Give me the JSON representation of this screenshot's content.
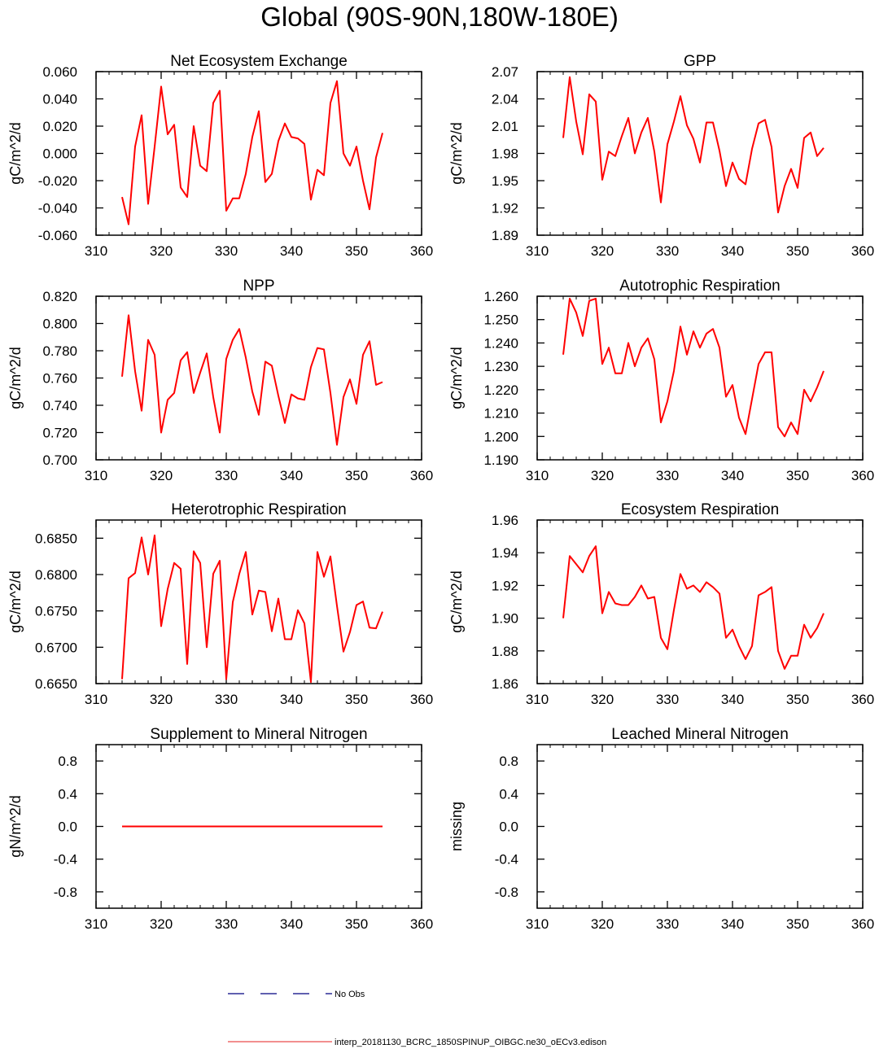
{
  "title": "Global (90S-90N,180W-180E)",
  "legend": {
    "obs_label": "No Obs",
    "model_label": "interp_20181130_BCRC_1850SPINUP_OIBGC.ne30_oECv3.edison",
    "obs_color": "#000080",
    "model_color": "#ee6a6a"
  },
  "line_color": "#ff0000",
  "chart_data": [
    {
      "type": "line",
      "title": "Net Ecosystem Exchange",
      "ylabel": "gC/m^2/d",
      "xlim": [
        310,
        360
      ],
      "xticks": [
        "310",
        "320",
        "330",
        "340",
        "350",
        "360"
      ],
      "ylim": [
        -0.06,
        0.06
      ],
      "yticks": [
        "-0.060",
        "-0.040",
        "-0.020",
        "0.000",
        "0.020",
        "0.040",
        "0.060"
      ],
      "x": [
        314,
        315,
        316,
        317,
        318,
        319,
        320,
        321,
        322,
        323,
        324,
        325,
        326,
        327,
        328,
        329,
        330,
        331,
        332,
        333,
        334,
        335,
        336,
        337,
        338,
        339,
        340,
        341,
        342,
        343,
        344,
        345,
        346,
        347,
        348,
        349,
        350,
        351,
        352,
        353,
        354
      ],
      "values": [
        -0.032,
        -0.052,
        0.005,
        0.028,
        -0.037,
        0.005,
        0.049,
        0.014,
        0.021,
        -0.025,
        -0.032,
        0.02,
        -0.009,
        -0.013,
        0.037,
        0.046,
        -0.042,
        -0.033,
        -0.033,
        -0.015,
        0.012,
        0.031,
        -0.021,
        -0.015,
        0.009,
        0.022,
        0.012,
        0.011,
        0.007,
        -0.034,
        -0.012,
        -0.016,
        0.037,
        0.053,
        0.0,
        -0.009,
        0.005,
        -0.02,
        -0.041,
        -0.003,
        0.015
      ]
    },
    {
      "type": "line",
      "title": "GPP",
      "ylabel": "gC/m^2/d",
      "xlim": [
        310,
        360
      ],
      "xticks": [
        "310",
        "320",
        "330",
        "340",
        "350",
        "360"
      ],
      "ylim": [
        1.89,
        2.07
      ],
      "yticks": [
        "1.89",
        "1.92",
        "1.95",
        "1.98",
        "2.01",
        "2.04",
        "2.07"
      ],
      "x": [
        314,
        315,
        316,
        317,
        318,
        319,
        320,
        321,
        322,
        323,
        324,
        325,
        326,
        327,
        328,
        329,
        330,
        331,
        332,
        333,
        334,
        335,
        336,
        337,
        338,
        339,
        340,
        341,
        342,
        343,
        344,
        345,
        346,
        347,
        348,
        349,
        350,
        351,
        352,
        353,
        354
      ],
      "values": [
        1.997,
        2.064,
        2.015,
        1.979,
        2.045,
        2.037,
        1.951,
        1.982,
        1.977,
        1.999,
        2.019,
        1.98,
        2.003,
        2.019,
        1.982,
        1.926,
        1.99,
        2.015,
        2.043,
        2.011,
        1.996,
        1.97,
        2.014,
        2.014,
        1.983,
        1.944,
        1.97,
        1.952,
        1.946,
        1.985,
        2.013,
        2.017,
        1.987,
        1.915,
        1.944,
        1.963,
        1.942,
        1.997,
        2.003,
        1.977,
        1.986
      ]
    },
    {
      "type": "line",
      "title": "NPP",
      "ylabel": "gC/m^2/d",
      "xlim": [
        310,
        360
      ],
      "xticks": [
        "310",
        "320",
        "330",
        "340",
        "350",
        "360"
      ],
      "ylim": [
        0.7,
        0.82
      ],
      "yticks": [
        "0.700",
        "0.720",
        "0.740",
        "0.760",
        "0.780",
        "0.800",
        "0.820"
      ],
      "x": [
        314,
        315,
        316,
        317,
        318,
        319,
        320,
        321,
        322,
        323,
        324,
        325,
        326,
        327,
        328,
        329,
        330,
        331,
        332,
        333,
        334,
        335,
        336,
        337,
        338,
        339,
        340,
        341,
        342,
        343,
        344,
        345,
        346,
        347,
        348,
        349,
        350,
        351,
        352,
        353,
        354
      ],
      "values": [
        0.761,
        0.806,
        0.765,
        0.736,
        0.788,
        0.777,
        0.72,
        0.744,
        0.749,
        0.773,
        0.779,
        0.749,
        0.764,
        0.778,
        0.746,
        0.72,
        0.774,
        0.788,
        0.796,
        0.775,
        0.75,
        0.733,
        0.772,
        0.769,
        0.747,
        0.727,
        0.748,
        0.745,
        0.744,
        0.768,
        0.782,
        0.781,
        0.749,
        0.711,
        0.746,
        0.759,
        0.741,
        0.777,
        0.787,
        0.755,
        0.757
      ]
    },
    {
      "type": "line",
      "title": "Autotrophic Respiration",
      "ylabel": "gC/m^2/d",
      "xlim": [
        310,
        360
      ],
      "xticks": [
        "310",
        "320",
        "330",
        "340",
        "350",
        "360"
      ],
      "ylim": [
        1.19,
        1.26
      ],
      "yticks": [
        "1.190",
        "1.200",
        "1.210",
        "1.220",
        "1.230",
        "1.240",
        "1.250",
        "1.260"
      ],
      "x": [
        314,
        315,
        316,
        317,
        318,
        319,
        320,
        321,
        322,
        323,
        324,
        325,
        326,
        327,
        328,
        329,
        330,
        331,
        332,
        333,
        334,
        335,
        336,
        337,
        338,
        339,
        340,
        341,
        342,
        343,
        344,
        345,
        346,
        347,
        348,
        349,
        350,
        351,
        352,
        353,
        354
      ],
      "values": [
        1.235,
        1.259,
        1.253,
        1.243,
        1.258,
        1.259,
        1.231,
        1.238,
        1.227,
        1.227,
        1.24,
        1.23,
        1.238,
        1.242,
        1.233,
        1.206,
        1.215,
        1.228,
        1.247,
        1.235,
        1.245,
        1.238,
        1.244,
        1.246,
        1.238,
        1.217,
        1.222,
        1.208,
        1.201,
        1.216,
        1.231,
        1.236,
        1.236,
        1.204,
        1.2,
        1.206,
        1.201,
        1.22,
        1.215,
        1.221,
        1.228
      ]
    },
    {
      "type": "line",
      "title": "Heterotrophic Respiration",
      "ylabel": "gC/m^2/d",
      "xlim": [
        310,
        360
      ],
      "xticks": [
        "310",
        "320",
        "330",
        "340",
        "350",
        "360"
      ],
      "ylim": [
        0.665,
        0.6875
      ],
      "yticks": [
        "0.6650",
        "0.6700",
        "0.6750",
        "0.6800",
        "0.6850"
      ],
      "x": [
        314,
        315,
        316,
        317,
        318,
        319,
        320,
        321,
        322,
        323,
        324,
        325,
        326,
        327,
        328,
        329,
        330,
        331,
        332,
        333,
        334,
        335,
        336,
        337,
        338,
        339,
        340,
        341,
        342,
        343,
        344,
        345,
        346,
        347,
        348,
        349,
        350,
        351,
        352,
        353,
        354
      ],
      "values": [
        0.6656,
        0.6795,
        0.6802,
        0.6851,
        0.68,
        0.6854,
        0.6729,
        0.678,
        0.6816,
        0.6808,
        0.6677,
        0.6832,
        0.6816,
        0.67,
        0.6801,
        0.6819,
        0.6656,
        0.6762,
        0.6801,
        0.6831,
        0.6745,
        0.6778,
        0.6776,
        0.6722,
        0.6767,
        0.6711,
        0.6711,
        0.6751,
        0.6733,
        0.6652,
        0.6831,
        0.6797,
        0.6825,
        0.6757,
        0.6694,
        0.6721,
        0.6758,
        0.6763,
        0.6727,
        0.6726,
        0.6749
      ]
    },
    {
      "type": "line",
      "title": "Ecosystem Respiration",
      "ylabel": "gC/m^2/d",
      "xlim": [
        310,
        360
      ],
      "xticks": [
        "310",
        "320",
        "330",
        "340",
        "350",
        "360"
      ],
      "ylim": [
        1.86,
        1.96
      ],
      "yticks": [
        "1.86",
        "1.88",
        "1.90",
        "1.92",
        "1.94",
        "1.96"
      ],
      "x": [
        314,
        315,
        316,
        317,
        318,
        319,
        320,
        321,
        322,
        323,
        324,
        325,
        326,
        327,
        328,
        329,
        330,
        331,
        332,
        333,
        334,
        335,
        336,
        337,
        338,
        339,
        340,
        341,
        342,
        343,
        344,
        345,
        346,
        347,
        348,
        349,
        350,
        351,
        352,
        353,
        354
      ],
      "values": [
        1.9,
        1.938,
        1.933,
        1.928,
        1.938,
        1.944,
        1.903,
        1.916,
        1.909,
        1.908,
        1.908,
        1.913,
        1.92,
        1.912,
        1.913,
        1.888,
        1.881,
        1.905,
        1.927,
        1.918,
        1.92,
        1.916,
        1.922,
        1.919,
        1.915,
        1.888,
        1.893,
        1.883,
        1.875,
        1.883,
        1.914,
        1.916,
        1.919,
        1.88,
        1.869,
        1.877,
        1.877,
        1.896,
        1.888,
        1.894,
        1.903
      ]
    },
    {
      "type": "line",
      "title": "Supplement to Mineral Nitrogen",
      "ylabel": "gN/m^2/d",
      "xlim": [
        310,
        360
      ],
      "xticks": [
        "310",
        "320",
        "330",
        "340",
        "350",
        "360"
      ],
      "ylim": [
        -1.0,
        1.0
      ],
      "yticks": [
        "-0.8",
        "-0.4",
        "0.0",
        "0.4",
        "0.8"
      ],
      "ytick_values": [
        -0.8,
        -0.4,
        0.0,
        0.4,
        0.8
      ],
      "x": [
        314,
        354
      ],
      "values": [
        0.0,
        0.0
      ]
    },
    {
      "type": "line",
      "title": "Leached Mineral Nitrogen",
      "ylabel": "missing",
      "xlim": [
        310,
        360
      ],
      "xticks": [
        "310",
        "320",
        "330",
        "340",
        "350",
        "360"
      ],
      "ylim": [
        -1.0,
        1.0
      ],
      "yticks": [
        "-0.8",
        "-0.4",
        "0.0",
        "0.4",
        "0.8"
      ],
      "ytick_values": [
        -0.8,
        -0.4,
        0.0,
        0.4,
        0.8
      ],
      "x": [],
      "values": []
    }
  ]
}
